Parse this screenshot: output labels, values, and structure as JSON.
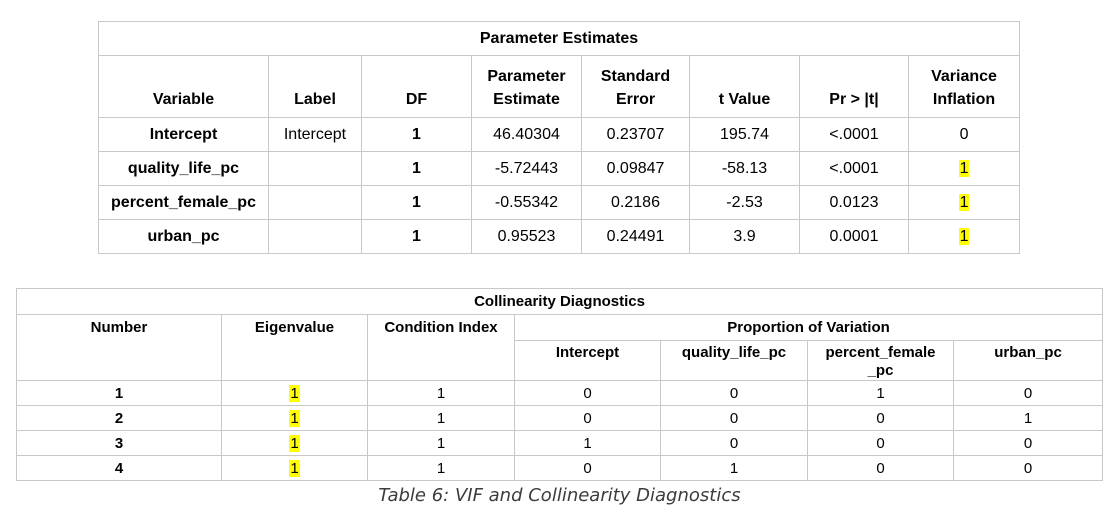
{
  "parameter_estimates": {
    "title": "Parameter Estimates",
    "headers": [
      "Variable",
      "Label",
      "DF",
      "Parameter Estimate",
      "Standard Error",
      "t Value",
      "Pr > |t|",
      "Variance Inflation"
    ],
    "rows": [
      {
        "variable": "Intercept",
        "label": "Intercept",
        "df": "1",
        "estimate": "46.40304",
        "std_error": "0.23707",
        "t_value": "195.74",
        "pr_t": "<.0001",
        "vif": "0",
        "vif_highlight": false
      },
      {
        "variable": "quality_life_pc",
        "label": "",
        "df": "1",
        "estimate": "-5.72443",
        "std_error": "0.09847",
        "t_value": "-58.13",
        "pr_t": "<.0001",
        "vif": "1",
        "vif_highlight": true
      },
      {
        "variable": "percent_female_pc",
        "label": "",
        "df": "1",
        "estimate": "-0.55342",
        "std_error": "0.2186",
        "t_value": "-2.53",
        "pr_t": "0.0123",
        "vif": "1",
        "vif_highlight": true
      },
      {
        "variable": "urban_pc",
        "label": "",
        "df": "1",
        "estimate": "0.95523",
        "std_error": "0.24491",
        "t_value": "3.9",
        "pr_t": "0.0001",
        "vif": "1",
        "vif_highlight": true
      }
    ]
  },
  "collinearity_diagnostics": {
    "title": "Collinearity Diagnostics",
    "headers": {
      "number": "Number",
      "eigenvalue": "Eigenvalue",
      "condition_index": "Condition Index",
      "proportion_of_variation": "Proportion of Variation",
      "intercept": "Intercept",
      "quality_life_pc": "quality_life_pc",
      "percent_female_pc": "percent_female _pc",
      "urban_pc": "urban_pc"
    },
    "rows": [
      {
        "number": "1",
        "eigenvalue": "1",
        "condition_index": "1",
        "intercept": "0",
        "quality_life_pc": "0",
        "percent_female_pc": "1",
        "urban_pc": "0"
      },
      {
        "number": "2",
        "eigenvalue": "1",
        "condition_index": "1",
        "intercept": "0",
        "quality_life_pc": "0",
        "percent_female_pc": "0",
        "urban_pc": "1"
      },
      {
        "number": "3",
        "eigenvalue": "1",
        "condition_index": "1",
        "intercept": "1",
        "quality_life_pc": "0",
        "percent_female_pc": "0",
        "urban_pc": "0"
      },
      {
        "number": "4",
        "eigenvalue": "1",
        "condition_index": "1",
        "intercept": "0",
        "quality_life_pc": "1",
        "percent_female_pc": "0",
        "urban_pc": "0"
      }
    ]
  },
  "caption": "Table 6: VIF and Collinearity Diagnostics",
  "colors": {
    "highlight": "#ffff00",
    "border": "#c8c8c8",
    "caption_text": "#3c3c3c"
  }
}
